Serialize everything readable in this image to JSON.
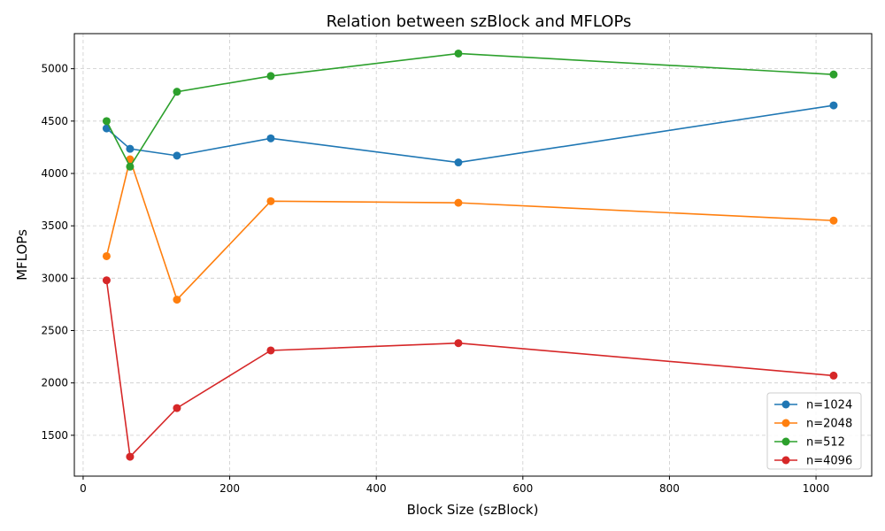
{
  "chart_data": {
    "type": "line",
    "title": "Relation between szBlock and MFLOPs",
    "xlabel": "Block Size (szBlock)",
    "ylabel": "MFLOPs",
    "x": [
      32,
      64,
      128,
      256,
      512,
      1024
    ],
    "xlim": [
      -12,
      1076
    ],
    "ylim": [
      1110,
      5335
    ],
    "xticks": [
      0,
      200,
      400,
      600,
      800,
      1000
    ],
    "yticks": [
      1500,
      2000,
      2500,
      3000,
      3500,
      4000,
      4500,
      5000
    ],
    "grid": true,
    "legend_position": "lower right",
    "series": [
      {
        "name": "n=1024",
        "color": "#1f77b4",
        "values": [
          4430,
          4235,
          4170,
          4335,
          4105,
          4650
        ]
      },
      {
        "name": "n=2048",
        "color": "#ff7f0e",
        "values": [
          3210,
          4135,
          2795,
          3735,
          3720,
          3550
        ]
      },
      {
        "name": "n=512",
        "color": "#2ca02c",
        "values": [
          4500,
          4065,
          4780,
          4930,
          5145,
          4945
        ]
      },
      {
        "name": "n=4096",
        "color": "#d62728",
        "values": [
          2980,
          1295,
          1760,
          2310,
          2380,
          2070
        ]
      }
    ]
  }
}
